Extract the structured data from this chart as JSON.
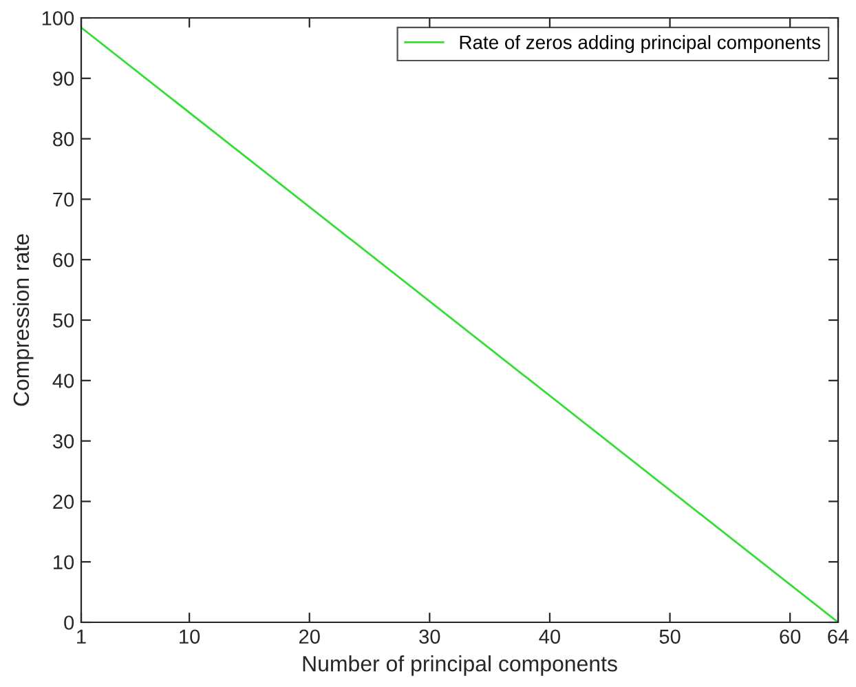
{
  "chart_data": {
    "type": "line",
    "xlabel": "Number of principal components",
    "ylabel": "Compression rate",
    "series": [
      {
        "name": "Rate of zeros adding principal components",
        "color": "#33dd33",
        "x": [
          1,
          64
        ],
        "values": [
          98.4,
          0
        ]
      }
    ],
    "xlim": [
      1,
      64
    ],
    "xticks": [
      1,
      10,
      20,
      30,
      40,
      50,
      60,
      64
    ],
    "ylim": [
      0,
      100
    ],
    "yticks": [
      0,
      10,
      20,
      30,
      40,
      50,
      60,
      70,
      80,
      90,
      100
    ],
    "grid": false,
    "legend": "top right",
    "marker": "none",
    "line_style": "solid"
  }
}
